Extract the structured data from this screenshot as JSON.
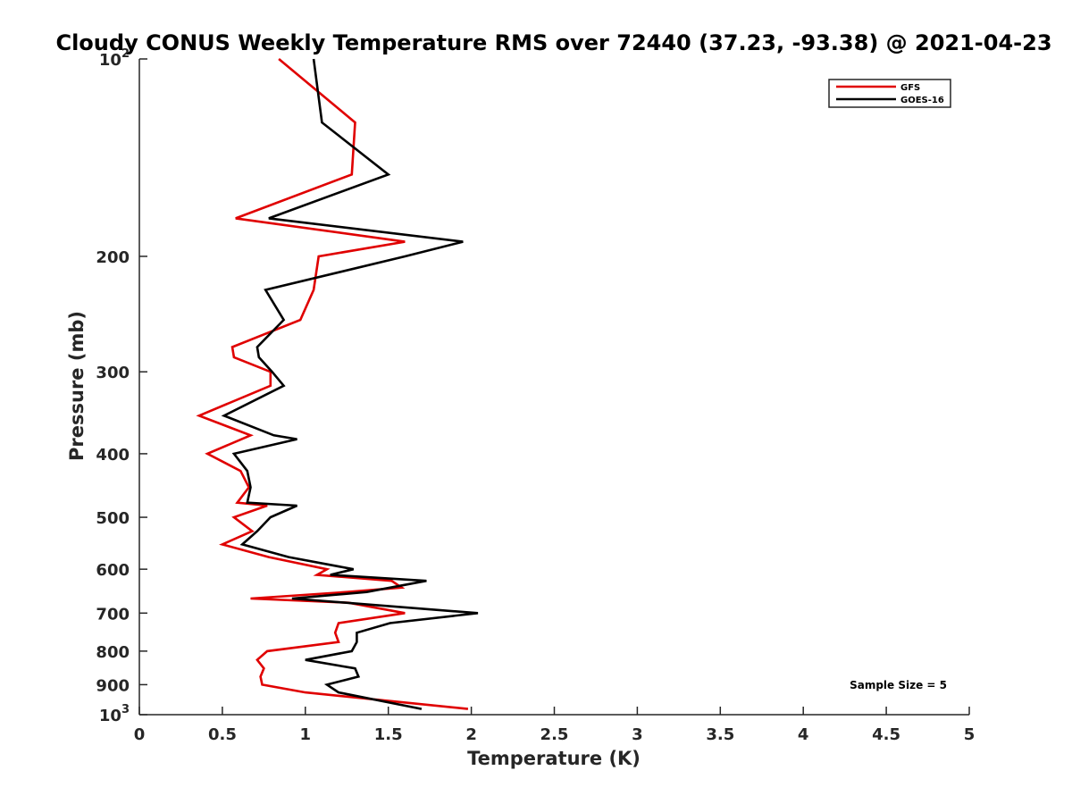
{
  "chart_data": {
    "type": "line",
    "title": "Cloudy CONUS Weekly Temperature RMS over 72440 (37.23, -93.38) @ 2021-04-23",
    "xlabel": "Temperature (K)",
    "ylabel": "Pressure (mb)",
    "xlim": [
      0,
      5
    ],
    "ylim": [
      100,
      1000
    ],
    "y_scale": "log",
    "y_reversed": true,
    "grid": false,
    "legend_position": "top-right",
    "x_ticks": [
      "0",
      "0.5",
      "1",
      "1.5",
      "2",
      "2.5",
      "3",
      "3.5",
      "4",
      "4.5",
      "5"
    ],
    "y_ticks": [
      {
        "value": 100,
        "base": "10",
        "exp": "2"
      },
      {
        "value": 200,
        "label": "200"
      },
      {
        "value": 300,
        "label": "300"
      },
      {
        "value": 400,
        "label": "400"
      },
      {
        "value": 500,
        "label": "500"
      },
      {
        "value": 600,
        "label": "600"
      },
      {
        "value": 700,
        "label": "700"
      },
      {
        "value": 800,
        "label": "800"
      },
      {
        "value": 900,
        "label": "900"
      },
      {
        "value": 1000,
        "base": "10",
        "exp": "3"
      }
    ],
    "annotation": "Sample Size = 5",
    "series": [
      {
        "name": "GFS",
        "color": "#e00000",
        "points": [
          [
            0.84,
            100
          ],
          [
            1.3,
            125
          ],
          [
            1.28,
            150
          ],
          [
            0.58,
            175
          ],
          [
            1.6,
            190
          ],
          [
            1.08,
            200
          ],
          [
            1.05,
            225
          ],
          [
            0.97,
            250
          ],
          [
            0.56,
            275
          ],
          [
            0.57,
            285
          ],
          [
            0.79,
            300
          ],
          [
            0.79,
            315
          ],
          [
            0.36,
            350
          ],
          [
            0.67,
            375
          ],
          [
            0.41,
            400
          ],
          [
            0.61,
            425
          ],
          [
            0.66,
            450
          ],
          [
            0.59,
            475
          ],
          [
            0.77,
            480
          ],
          [
            0.57,
            500
          ],
          [
            0.68,
            525
          ],
          [
            0.5,
            550
          ],
          [
            0.78,
            575
          ],
          [
            1.13,
            600
          ],
          [
            1.07,
            612
          ],
          [
            1.52,
            625
          ],
          [
            1.58,
            640
          ],
          [
            1.25,
            650
          ],
          [
            0.67,
            665
          ],
          [
            1.26,
            675
          ],
          [
            1.6,
            700
          ],
          [
            1.2,
            725
          ],
          [
            1.18,
            750
          ],
          [
            1.2,
            775
          ],
          [
            0.77,
            800
          ],
          [
            0.71,
            825
          ],
          [
            0.75,
            850
          ],
          [
            0.73,
            875
          ],
          [
            0.74,
            900
          ],
          [
            1.0,
            925
          ],
          [
            1.98,
            980
          ]
        ]
      },
      {
        "name": "GOES-16",
        "color": "#000000",
        "points": [
          [
            1.05,
            100
          ],
          [
            1.1,
            125
          ],
          [
            1.5,
            150
          ],
          [
            0.78,
            175
          ],
          [
            1.95,
            190
          ],
          [
            1.6,
            200
          ],
          [
            0.76,
            225
          ],
          [
            0.87,
            250
          ],
          [
            0.71,
            275
          ],
          [
            0.72,
            285
          ],
          [
            0.8,
            300
          ],
          [
            0.87,
            315
          ],
          [
            0.51,
            350
          ],
          [
            0.81,
            375
          ],
          [
            0.95,
            380
          ],
          [
            0.57,
            400
          ],
          [
            0.65,
            425
          ],
          [
            0.67,
            450
          ],
          [
            0.65,
            475
          ],
          [
            0.95,
            480
          ],
          [
            0.79,
            500
          ],
          [
            0.71,
            525
          ],
          [
            0.62,
            550
          ],
          [
            0.9,
            575
          ],
          [
            1.29,
            600
          ],
          [
            1.15,
            612
          ],
          [
            1.73,
            625
          ],
          [
            1.37,
            650
          ],
          [
            0.92,
            665
          ],
          [
            2.04,
            700
          ],
          [
            1.51,
            725
          ],
          [
            1.31,
            750
          ],
          [
            1.31,
            775
          ],
          [
            1.28,
            800
          ],
          [
            1.0,
            825
          ],
          [
            1.3,
            850
          ],
          [
            1.32,
            875
          ],
          [
            1.13,
            900
          ],
          [
            1.2,
            925
          ],
          [
            1.7,
            980
          ]
        ]
      }
    ]
  }
}
